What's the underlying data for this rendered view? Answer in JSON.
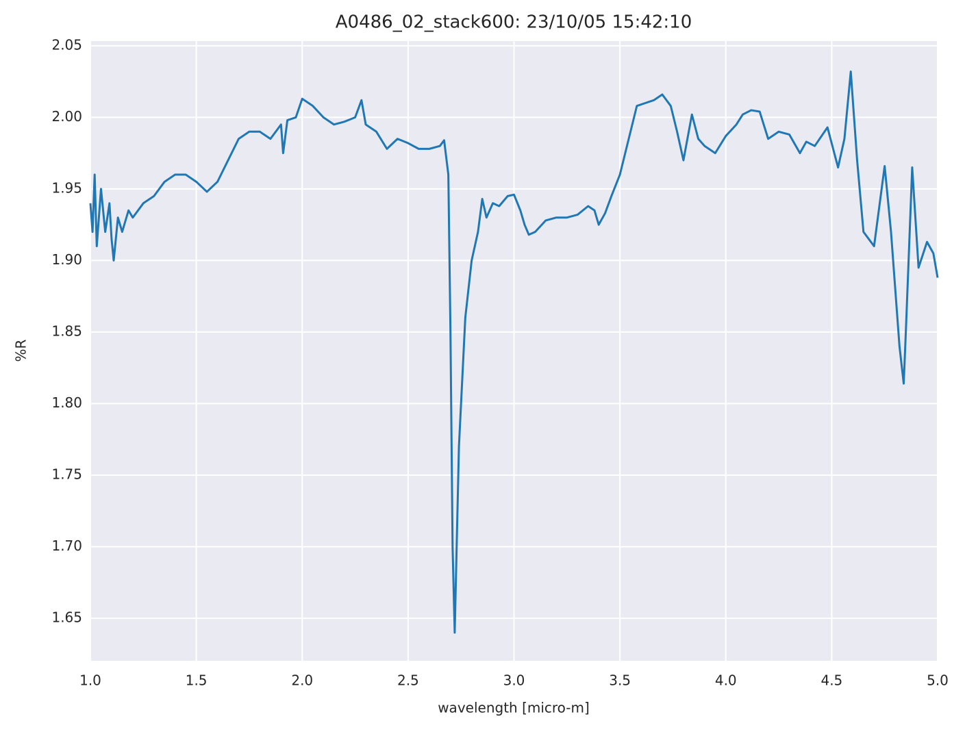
{
  "chart_data": {
    "type": "line",
    "title": "A0486_02_stack600:  23/10/05 15:42:10",
    "x_label": "wavelength [micro-m]",
    "y_label": "%R",
    "x": [
      1.0,
      1.01,
      1.02,
      1.03,
      1.05,
      1.07,
      1.09,
      1.1,
      1.11,
      1.13,
      1.15,
      1.18,
      1.2,
      1.25,
      1.3,
      1.35,
      1.4,
      1.45,
      1.5,
      1.55,
      1.6,
      1.65,
      1.7,
      1.75,
      1.8,
      1.85,
      1.9,
      1.91,
      1.93,
      1.97,
      2.0,
      2.05,
      2.1,
      2.15,
      2.2,
      2.25,
      2.28,
      2.3,
      2.35,
      2.4,
      2.45,
      2.5,
      2.55,
      2.6,
      2.65,
      2.67,
      2.69,
      2.7,
      2.71,
      2.72,
      2.74,
      2.77,
      2.8,
      2.83,
      2.85,
      2.87,
      2.9,
      2.93,
      2.97,
      3.0,
      3.03,
      3.05,
      3.07,
      3.1,
      3.15,
      3.2,
      3.25,
      3.3,
      3.35,
      3.38,
      3.4,
      3.43,
      3.46,
      3.5,
      3.55,
      3.58,
      3.62,
      3.66,
      3.7,
      3.74,
      3.77,
      3.8,
      3.84,
      3.87,
      3.9,
      3.95,
      4.0,
      4.05,
      4.08,
      4.12,
      4.16,
      4.2,
      4.25,
      4.3,
      4.35,
      4.38,
      4.42,
      4.48,
      4.53,
      4.56,
      4.59,
      4.62,
      4.65,
      4.7,
      4.75,
      4.78,
      4.82,
      4.84,
      4.85,
      4.88,
      4.91,
      4.95,
      4.98,
      5.0
    ],
    "series": [
      {
        "name": "%R",
        "color": "#1f77b4",
        "values": [
          1.94,
          1.92,
          1.96,
          1.91,
          1.95,
          1.92,
          1.94,
          1.915,
          1.9,
          1.93,
          1.92,
          1.935,
          1.93,
          1.94,
          1.945,
          1.955,
          1.96,
          1.96,
          1.955,
          1.948,
          1.955,
          1.97,
          1.985,
          1.99,
          1.99,
          1.985,
          1.995,
          1.975,
          1.998,
          2.0,
          2.013,
          2.008,
          2.0,
          1.995,
          1.997,
          2.0,
          2.012,
          1.995,
          1.99,
          1.978,
          1.985,
          1.982,
          1.978,
          1.978,
          1.98,
          1.984,
          1.96,
          1.85,
          1.7,
          1.64,
          1.77,
          1.86,
          1.9,
          1.92,
          1.943,
          1.93,
          1.94,
          1.938,
          1.945,
          1.946,
          1.935,
          1.925,
          1.918,
          1.92,
          1.928,
          1.93,
          1.93,
          1.932,
          1.938,
          1.935,
          1.925,
          1.933,
          1.945,
          1.96,
          1.99,
          2.008,
          2.01,
          2.012,
          2.016,
          2.008,
          1.99,
          1.97,
          2.002,
          1.985,
          1.98,
          1.975,
          1.987,
          1.995,
          2.002,
          2.005,
          2.004,
          1.985,
          1.99,
          1.988,
          1.975,
          1.983,
          1.98,
          1.993,
          1.965,
          1.985,
          2.032,
          1.97,
          1.92,
          1.91,
          1.966,
          1.92,
          1.84,
          1.814,
          1.85,
          1.965,
          1.895,
          1.913,
          1.905,
          1.888
        ]
      }
    ],
    "xlim": [
      1.0,
      5.0
    ],
    "ylim": [
      1.6203,
      2.0533
    ],
    "xticks": [
      {
        "value": 1,
        "label": "1.0"
      },
      1.5,
      {
        "value": 2,
        "label": "2.0"
      },
      2.5,
      {
        "value": 3,
        "label": "3.0"
      },
      3.5,
      {
        "value": 4,
        "label": "4.0"
      },
      4.5,
      {
        "value": 5,
        "label": "5.0"
      }
    ],
    "yticks": [
      1.65,
      {
        "value": 1.7,
        "label": "1.70"
      },
      1.75,
      {
        "value": 1.8,
        "label": "1.80"
      },
      1.85,
      {
        "value": 1.9,
        "label": "1.90"
      },
      1.95,
      {
        "value": 2,
        "label": "2.00"
      },
      2.05
    ],
    "grid": true
  }
}
